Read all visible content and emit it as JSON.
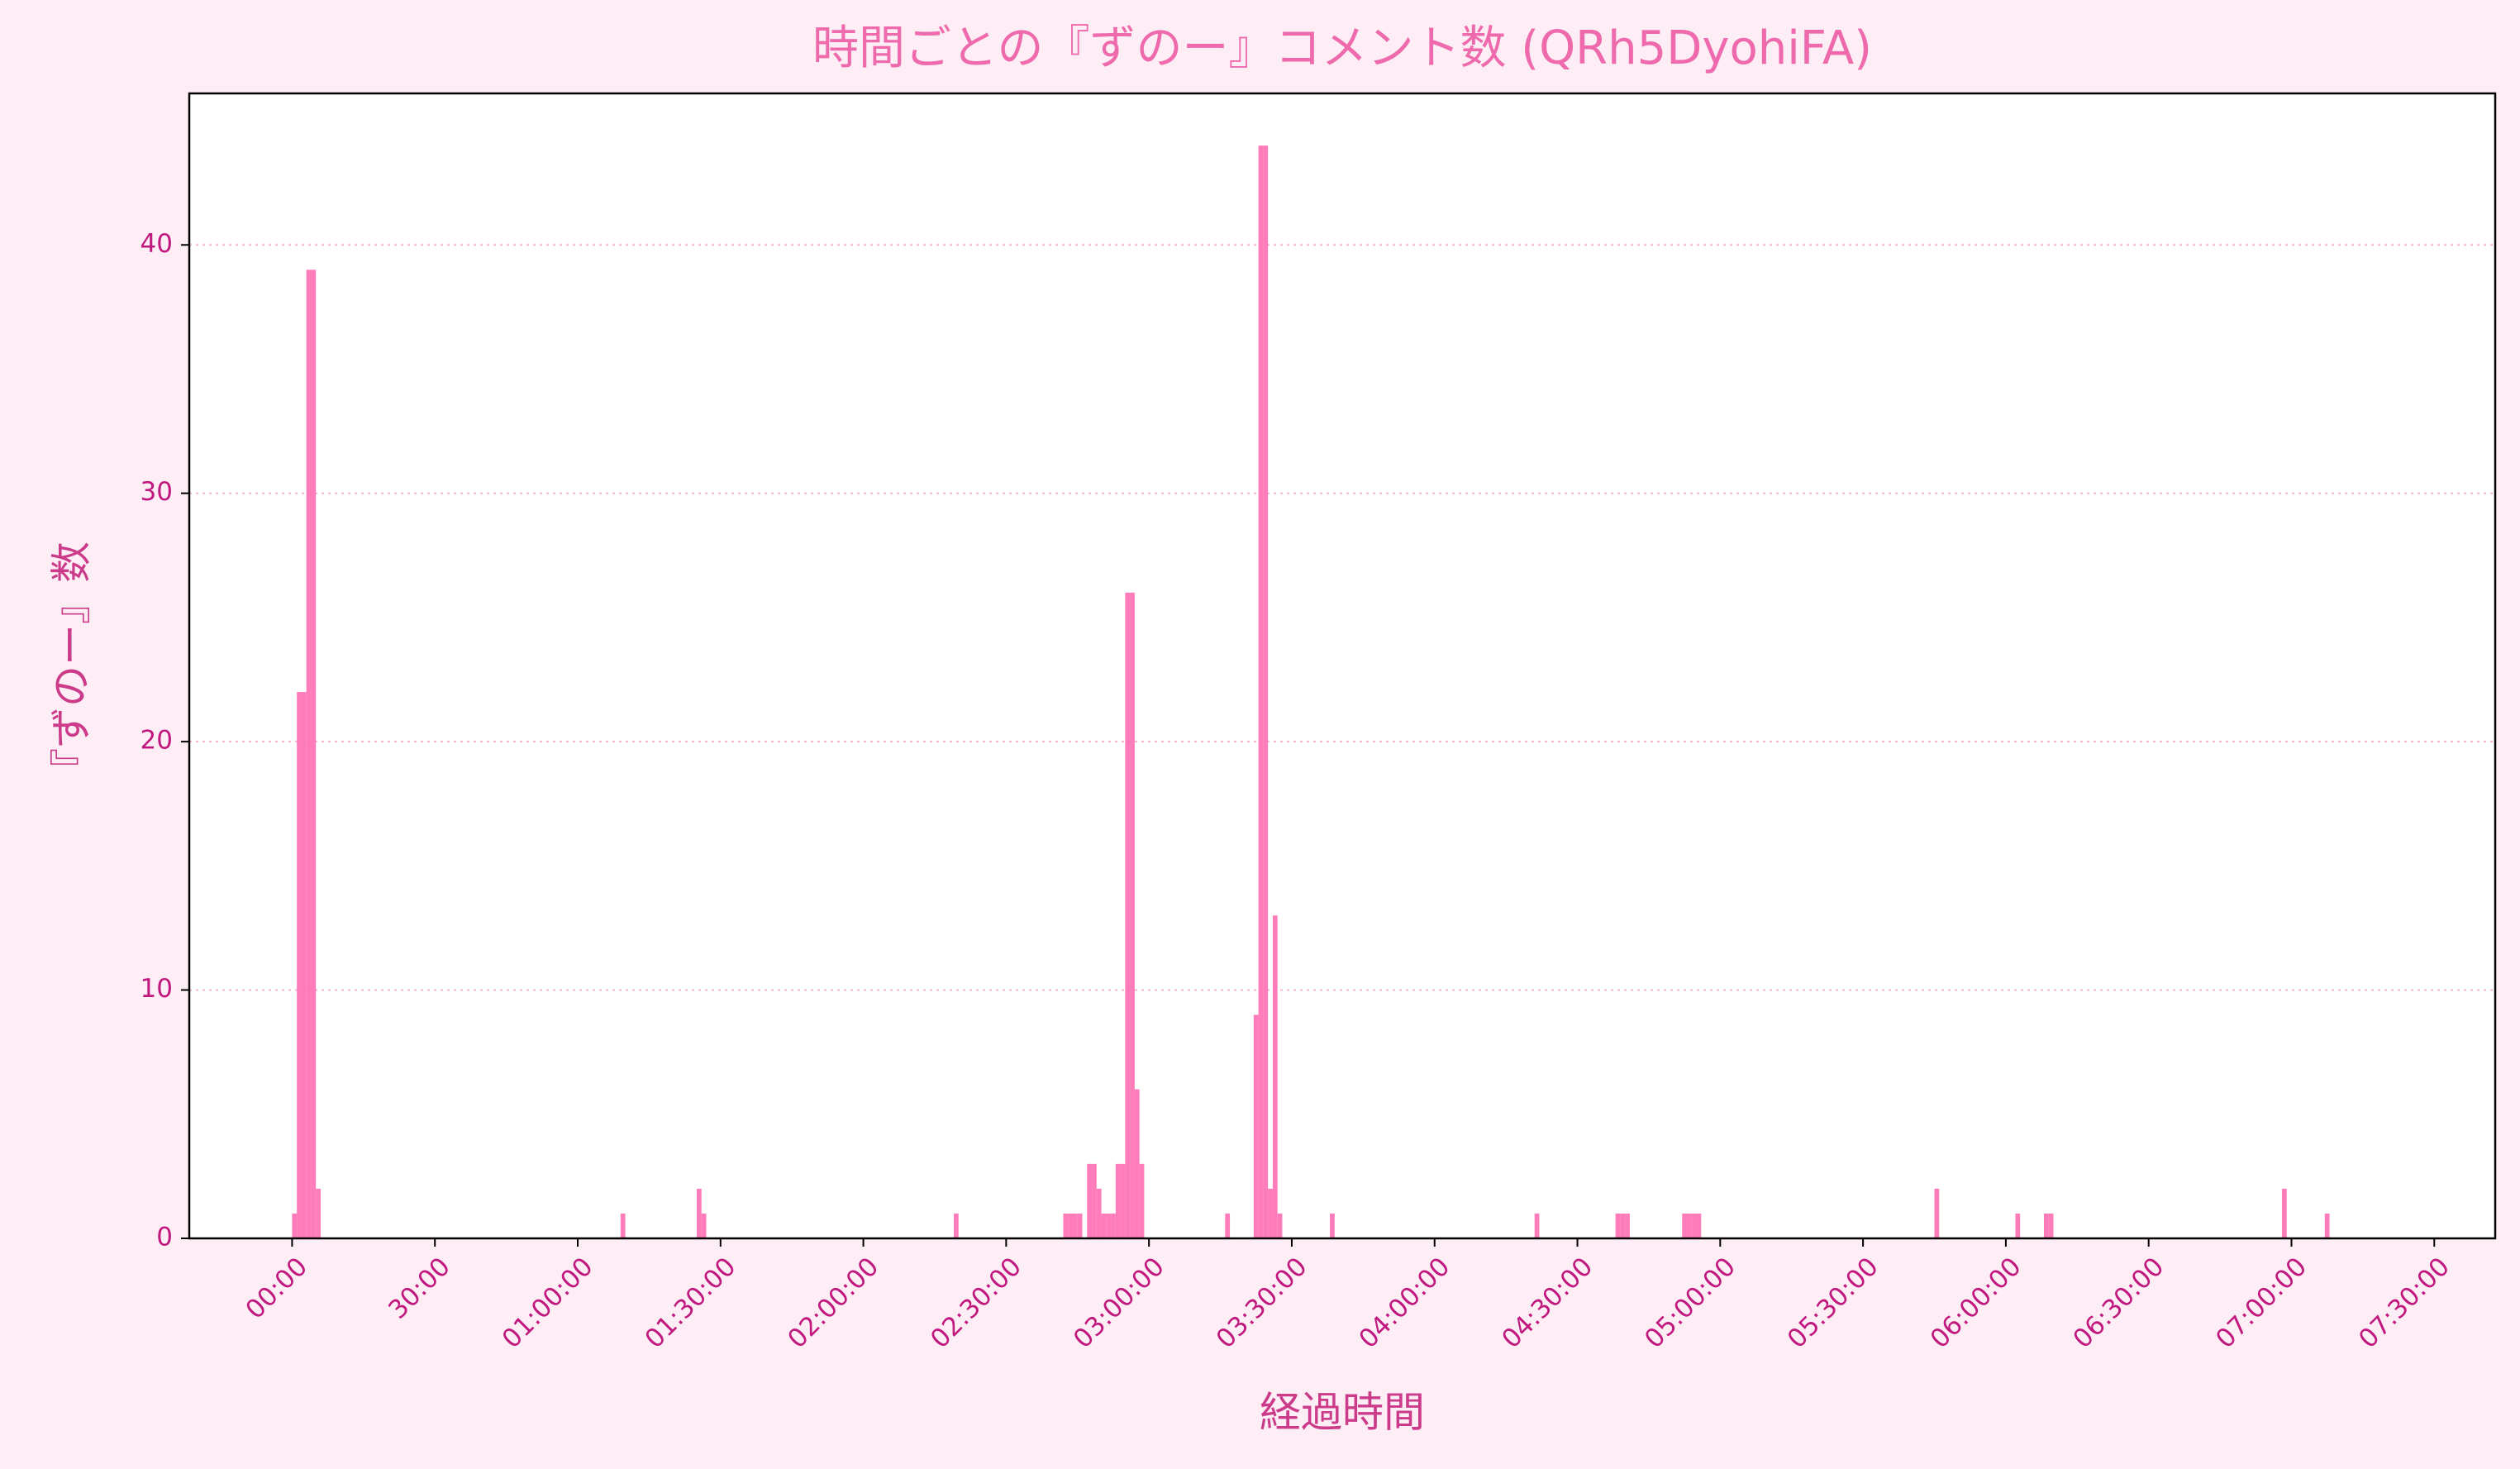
{
  "chart_data": {
    "type": "histogram",
    "title": "時間ごとの『ずのー』コメント数 (QRh5DyohiFA)",
    "x_label": "経過時間",
    "y_label": "『ずのー』数",
    "color": "#ff6eb4",
    "x": [
      0,
      1,
      2,
      3,
      4,
      5,
      69,
      85,
      86,
      139,
      162,
      163,
      164,
      165,
      167,
      168,
      169,
      170,
      171,
      172,
      173,
      174,
      175,
      176,
      177,
      178,
      196,
      202,
      203,
      204,
      205,
      206,
      207,
      218,
      261,
      278,
      279,
      280,
      292,
      293,
      294,
      295,
      345,
      362,
      368,
      369,
      418,
      427
    ],
    "values": [
      1,
      22,
      22,
      39,
      39,
      2,
      1,
      2,
      1,
      1,
      1,
      1,
      1,
      1,
      3,
      3,
      2,
      1,
      1,
      1,
      3,
      3,
      26,
      26,
      6,
      3,
      1,
      9,
      44,
      44,
      2,
      13,
      1,
      1,
      1,
      1,
      1,
      1,
      1,
      1,
      1,
      1,
      2,
      1,
      1,
      1,
      2,
      1
    ],
    "xlim": [
      -21.6,
      462.8
    ],
    "ylim": [
      0,
      46.1
    ],
    "xticks": [
      {
        "value": 0,
        "label": "00:00"
      },
      {
        "value": 30,
        "label": "30:00"
      },
      {
        "value": 60,
        "label": "01:00:00"
      },
      {
        "value": 90,
        "label": "01:30:00"
      },
      {
        "value": 120,
        "label": "02:00:00"
      },
      {
        "value": 150,
        "label": "02:30:00"
      },
      {
        "value": 180,
        "label": "03:00:00"
      },
      {
        "value": 210,
        "label": "03:30:00"
      },
      {
        "value": 240,
        "label": "04:00:00"
      },
      {
        "value": 270,
        "label": "04:30:00"
      },
      {
        "value": 300,
        "label": "05:00:00"
      },
      {
        "value": 330,
        "label": "05:30:00"
      },
      {
        "value": 360,
        "label": "06:00:00"
      },
      {
        "value": 390,
        "label": "06:30:00"
      },
      {
        "value": 420,
        "label": "07:00:00"
      },
      {
        "value": 450,
        "label": "07:30:00"
      }
    ],
    "yticks": [
      0,
      10,
      20,
      30,
      40
    ],
    "grid": true
  }
}
